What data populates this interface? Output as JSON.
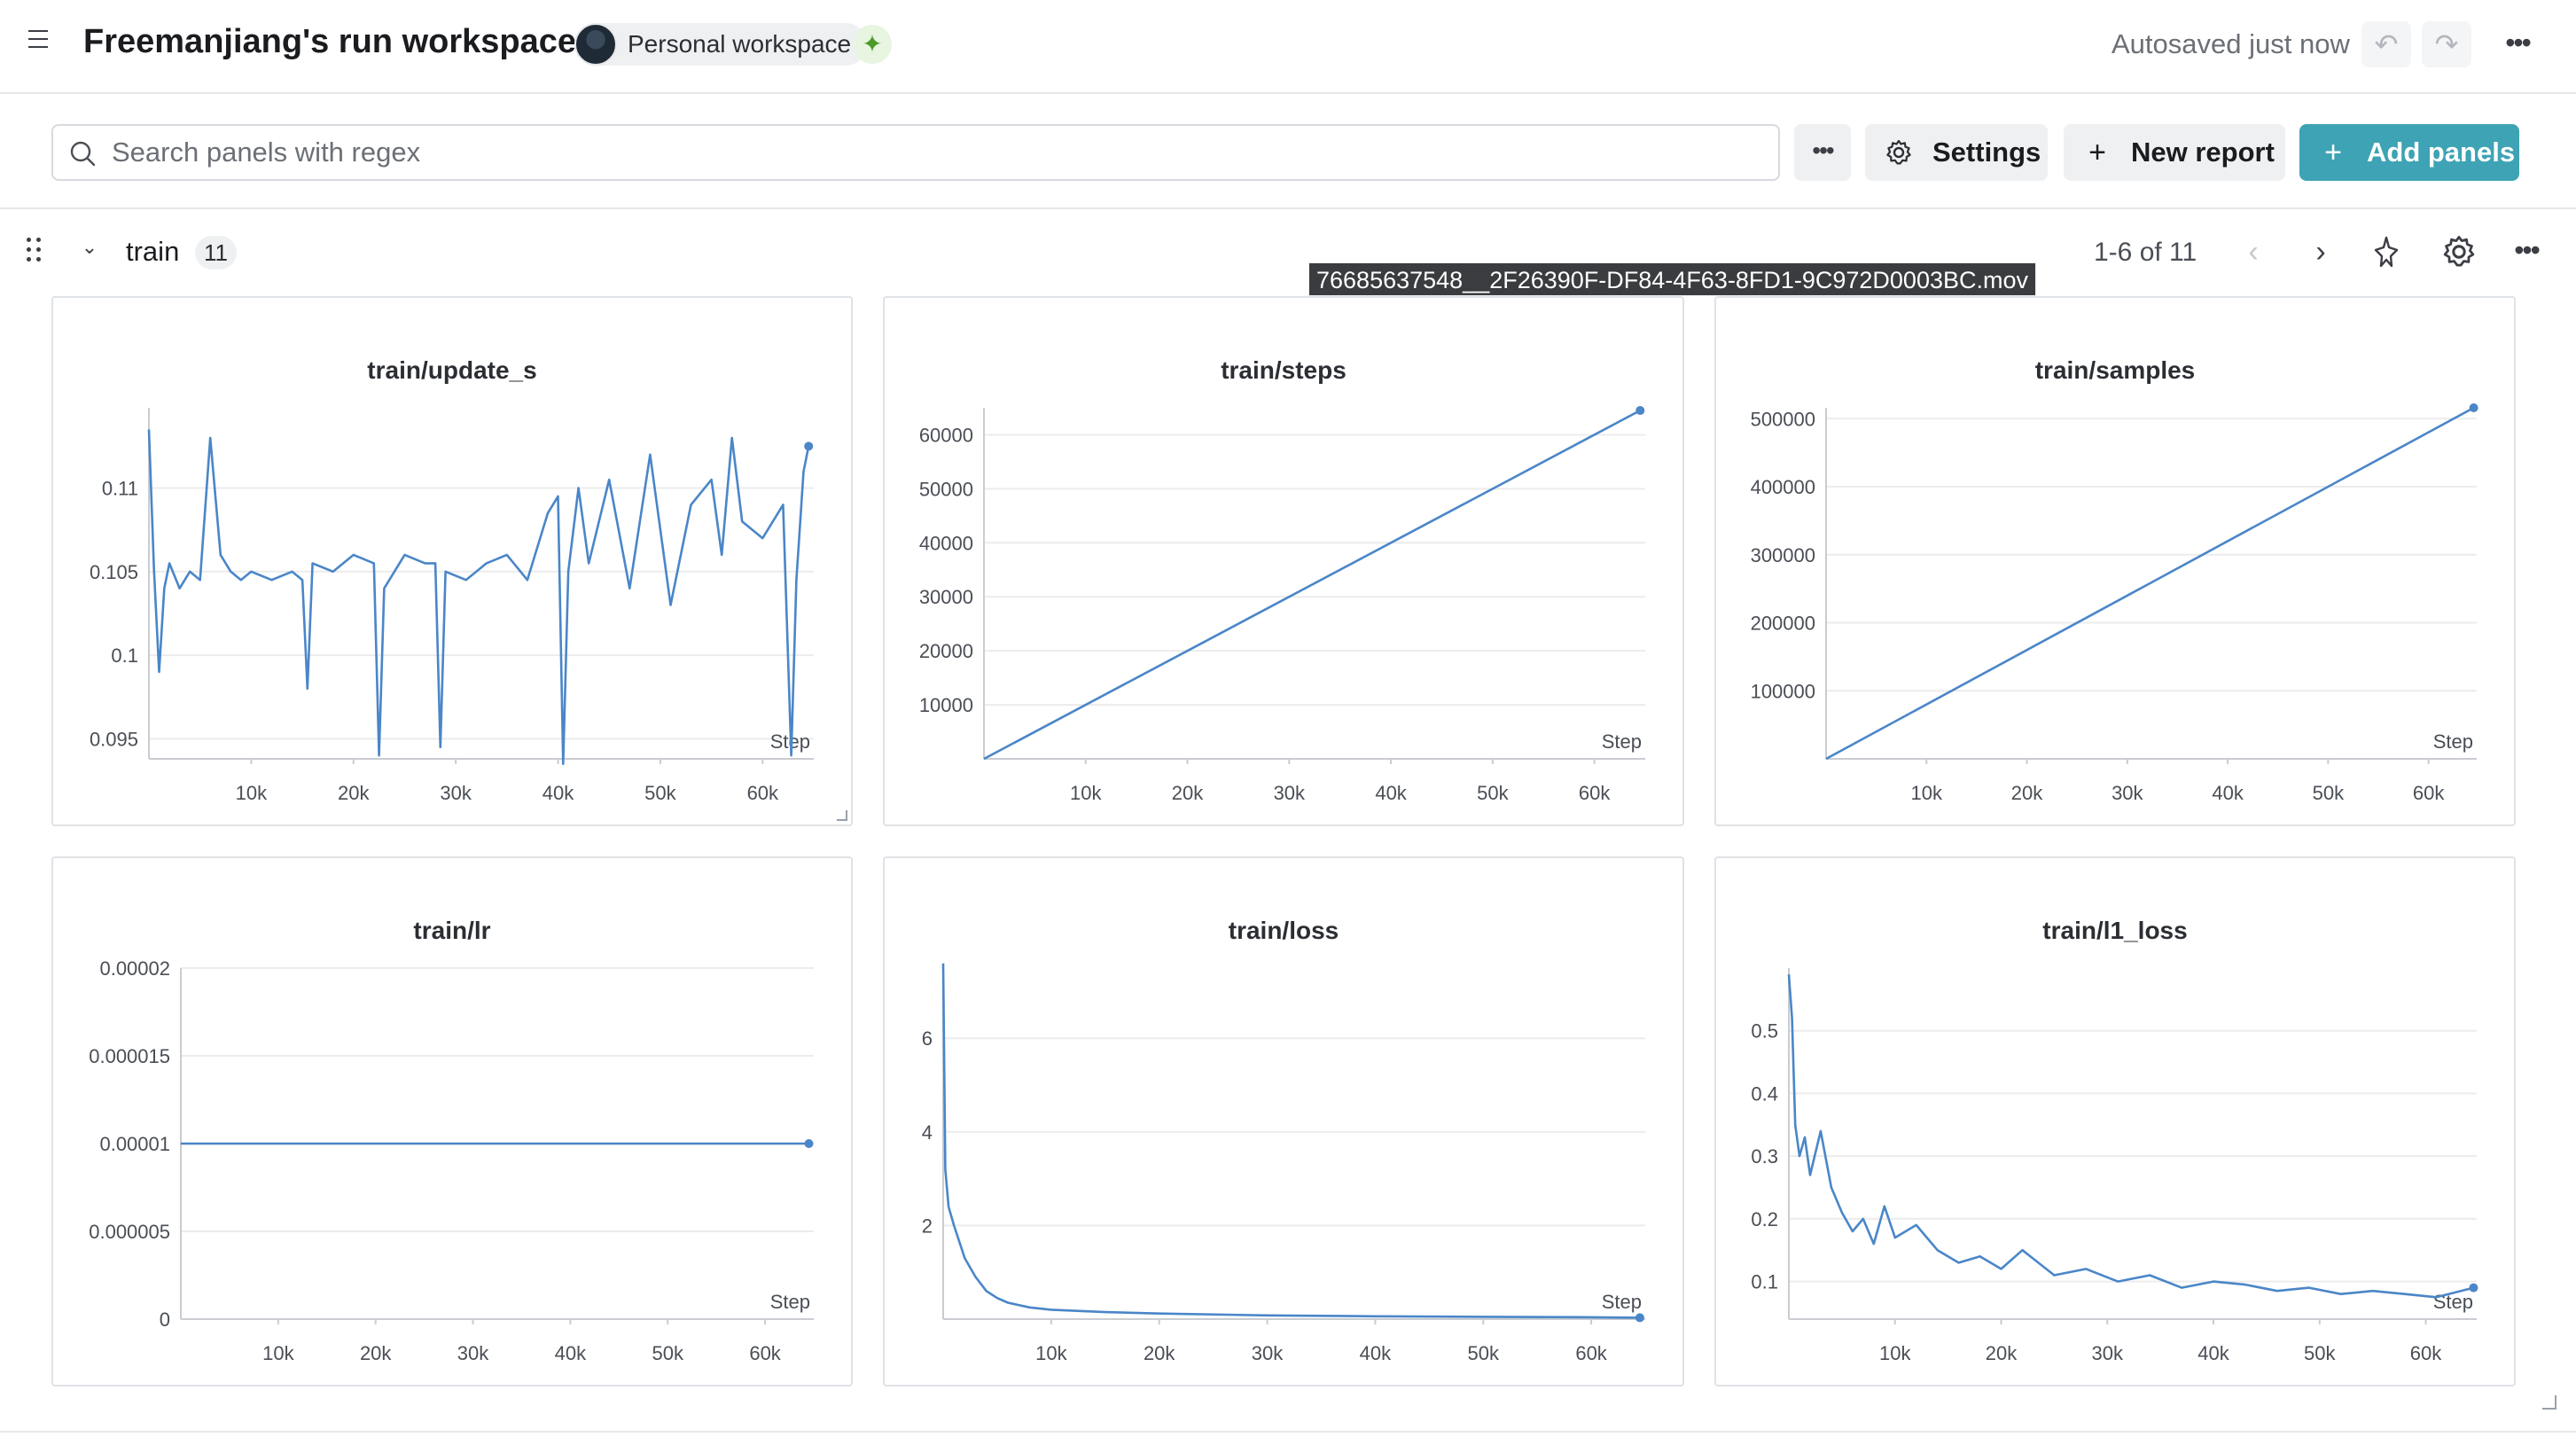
{
  "topbar": {
    "title": "Freemanjiang's run workspace",
    "workspace_badge": "Personal workspace",
    "autosave_status": "Autosaved just now"
  },
  "search": {
    "placeholder": "Search panels with regex",
    "value": ""
  },
  "toolbar": {
    "settings_label": "Settings",
    "new_report_label": "New report",
    "add_panels_label": "Add panels"
  },
  "section": {
    "title": "train",
    "count": "11",
    "page_info": "1-6 of 11"
  },
  "tooltip": "76685637548__2F26390F-DF84-4F63-8FD1-9C972D0003BC.mov",
  "colors": {
    "accent": "#3ea3b4",
    "line": "#4a86c8",
    "grid": "#ececec"
  },
  "icons": [
    "menu-icon",
    "sparkle-icon",
    "undo-icon",
    "redo-icon",
    "more-icon",
    "search-icon",
    "gear-icon",
    "plus-icon",
    "drag-handle-icon",
    "chevron-down-icon",
    "chevron-left-icon",
    "chevron-right-icon",
    "pin-icon"
  ],
  "chart_data": [
    {
      "type": "line",
      "title": "train/update_s",
      "xlabel": "Step",
      "ylabel": "",
      "xlim": [
        0,
        65000
      ],
      "ylim": [
        0.0938,
        0.1148
      ],
      "xticks": [
        "10k",
        "20k",
        "30k",
        "40k",
        "50k",
        "60k"
      ],
      "yticks": [
        "0.095",
        "0.1",
        "0.105",
        "0.11"
      ],
      "series": [
        {
          "x": [
            0,
            500,
            1000,
            1500,
            2000,
            3000,
            4000,
            5000,
            6000,
            7000,
            8000,
            9000,
            10000,
            12000,
            14000,
            15000,
            15500,
            16000,
            18000,
            20000,
            22000,
            22500,
            23000,
            25000,
            27000,
            28000,
            28500,
            29000,
            31000,
            33000,
            35000,
            37000,
            39000,
            40000,
            40500,
            41000,
            42000,
            43000,
            45000,
            47000,
            49000,
            51000,
            53000,
            55000,
            56000,
            57000,
            58000,
            60000,
            62000,
            62800,
            63300,
            64000,
            64500
          ],
          "y": [
            0.1135,
            0.105,
            0.099,
            0.104,
            0.1055,
            0.104,
            0.105,
            0.1045,
            0.113,
            0.106,
            0.105,
            0.1045,
            0.105,
            0.1045,
            0.105,
            0.1045,
            0.098,
            0.1055,
            0.105,
            0.106,
            0.1055,
            0.094,
            0.104,
            0.106,
            0.1055,
            0.1055,
            0.0945,
            0.105,
            0.1045,
            0.1055,
            0.106,
            0.1045,
            0.1085,
            0.1095,
            0.0935,
            0.105,
            0.11,
            0.1055,
            0.1105,
            0.104,
            0.112,
            0.103,
            0.109,
            0.1105,
            0.106,
            0.113,
            0.108,
            0.107,
            0.109,
            0.094,
            0.1045,
            0.111,
            0.1125
          ]
        }
      ]
    },
    {
      "type": "line",
      "title": "train/steps",
      "xlabel": "Step",
      "ylabel": "",
      "xlim": [
        0,
        65000
      ],
      "ylim": [
        0,
        65000
      ],
      "xticks": [
        "10k",
        "20k",
        "30k",
        "40k",
        "50k",
        "60k"
      ],
      "yticks": [
        "10000",
        "20000",
        "30000",
        "40000",
        "50000",
        "60000"
      ],
      "series": [
        {
          "x": [
            0,
            64500
          ],
          "y": [
            0,
            64500
          ]
        }
      ]
    },
    {
      "type": "line",
      "title": "train/samples",
      "xlabel": "Step",
      "ylabel": "",
      "xlim": [
        0,
        64800
      ],
      "ylim": [
        0,
        516000
      ],
      "xticks": [
        "10k",
        "20k",
        "30k",
        "40k",
        "50k",
        "60k"
      ],
      "yticks": [
        "100000",
        "200000",
        "300000",
        "400000",
        "500000"
      ],
      "series": [
        {
          "x": [
            0,
            64500
          ],
          "y": [
            0,
            516000
          ]
        }
      ]
    },
    {
      "type": "line",
      "title": "train/lr",
      "xlabel": "Step",
      "ylabel": "",
      "xlim": [
        0,
        65000
      ],
      "ylim": [
        0,
        2e-05
      ],
      "xticks": [
        "10k",
        "20k",
        "30k",
        "40k",
        "50k",
        "60k"
      ],
      "yticks": [
        "0",
        "0.000005",
        "0.00001",
        "0.000015",
        "0.00002"
      ],
      "series": [
        {
          "x": [
            0,
            64500
          ],
          "y": [
            1e-05,
            1e-05
          ]
        }
      ]
    },
    {
      "type": "line",
      "title": "train/loss",
      "xlabel": "Step",
      "ylabel": "",
      "xlim": [
        0,
        65000
      ],
      "ylim": [
        0,
        7.5
      ],
      "xticks": [
        "10k",
        "20k",
        "30k",
        "40k",
        "50k",
        "60k"
      ],
      "yticks": [
        "2",
        "4",
        "6"
      ],
      "series": [
        {
          "x": [
            0,
            200,
            500,
            1000,
            2000,
            3000,
            4000,
            5000,
            6000,
            8000,
            10000,
            15000,
            20000,
            30000,
            40000,
            50000,
            60000,
            64500
          ],
          "y": [
            7.6,
            3.2,
            2.4,
            2.0,
            1.3,
            0.9,
            0.6,
            0.45,
            0.35,
            0.25,
            0.2,
            0.15,
            0.12,
            0.08,
            0.06,
            0.05,
            0.04,
            0.03
          ]
        }
      ]
    },
    {
      "type": "line",
      "title": "train/l1_loss",
      "xlabel": "Step",
      "ylabel": "",
      "xlim": [
        0,
        64800
      ],
      "ylim": [
        0.04,
        0.6
      ],
      "xticks": [
        "10k",
        "20k",
        "30k",
        "40k",
        "50k",
        "60k"
      ],
      "yticks": [
        "0.1",
        "0.2",
        "0.3",
        "0.4",
        "0.5"
      ],
      "series": [
        {
          "x": [
            0,
            300,
            600,
            1000,
            1500,
            2000,
            3000,
            4000,
            5000,
            6000,
            7000,
            8000,
            9000,
            10000,
            12000,
            14000,
            16000,
            18000,
            20000,
            22000,
            25000,
            28000,
            31000,
            34000,
            37000,
            40000,
            43000,
            46000,
            49000,
            52000,
            55000,
            58000,
            61000,
            64500
          ],
          "y": [
            0.59,
            0.52,
            0.35,
            0.3,
            0.33,
            0.27,
            0.34,
            0.25,
            0.21,
            0.18,
            0.2,
            0.16,
            0.22,
            0.17,
            0.19,
            0.15,
            0.13,
            0.14,
            0.12,
            0.15,
            0.11,
            0.12,
            0.1,
            0.11,
            0.09,
            0.1,
            0.095,
            0.085,
            0.09,
            0.08,
            0.085,
            0.08,
            0.075,
            0.09
          ]
        }
      ]
    }
  ]
}
